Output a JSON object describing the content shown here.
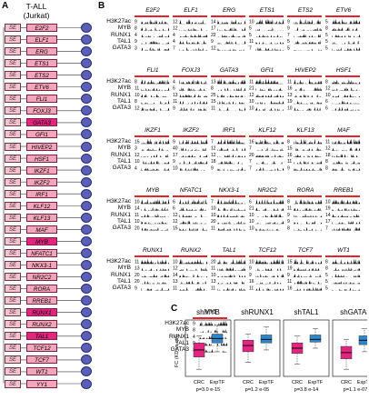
{
  "panel_a": {
    "letter": "A",
    "title_line1": "T-ALL",
    "title_line2": "(Jurkat)",
    "se_label": "SE",
    "genes": [
      "E2F2",
      "ELF1",
      "ERG",
      "ETS1",
      "ETS2",
      "ETV6",
      "FLI1",
      "FOXJ3",
      "GATA3",
      "GFI1",
      "HIVEP2",
      "HSF1",
      "IKZF1",
      "IKZF2",
      "IRF1",
      "KLF12",
      "KLF13",
      "MAF",
      "MYB",
      "NFATC1",
      "NKX3-1",
      "NR2C2",
      "RORA",
      "RREB1",
      "RUNX1",
      "RUNX2",
      "TAL1",
      "TCF12",
      "TCF7",
      "WT1",
      "YY1"
    ],
    "highlighted": [
      "GATA3",
      "MYB",
      "RUNX1",
      "TAL1"
    ]
  },
  "panel_b": {
    "letter": "B",
    "track_labels": [
      "H3K27ac",
      "MYB",
      "RUNX1",
      "TAL1",
      "GATA3"
    ],
    "blocks": [
      {
        "genes": [
          "E2F2",
          "ELF1",
          "ERG",
          "ETS1",
          "ETS2",
          "ETV6"
        ],
        "scales": [
          [
            "9",
            "8",
            "4",
            "9",
            "3"
          ],
          [
            "12",
            "12",
            "4",
            "4",
            "7"
          ],
          [
            "14",
            "17",
            "22",
            "9",
            "12"
          ],
          [
            "10",
            "5",
            "5",
            "11",
            "7"
          ],
          [
            "9",
            "9",
            "7",
            "5",
            "5"
          ],
          [
            "5",
            "8",
            "5",
            "5",
            "5"
          ]
        ]
      },
      {
        "genes": [
          "FLI1",
          "FOXJ3",
          "GATA3",
          "GFI1",
          "HIVEP2",
          "HSF1"
        ],
        "scales": [
          [
            "8",
            "11",
            "10",
            "8",
            "12"
          ],
          [
            "4",
            "6",
            "13",
            "11",
            "9"
          ],
          [
            "13",
            "8",
            "25",
            "15",
            "11"
          ],
          [
            "11",
            "21",
            "12",
            "10",
            "10"
          ],
          [
            "11",
            "16",
            "13",
            "19",
            "10"
          ],
          [
            "8",
            "12",
            "10",
            "6",
            "6"
          ]
        ]
      },
      {
        "genes": [
          "IKZF1",
          "IKZF2",
          "IRF1",
          "KLF12",
          "KLF13",
          "MAF"
        ],
        "scales": [
          [
            "15",
            "3",
            "12",
            "10",
            "4"
          ],
          [
            "9",
            "40",
            "17",
            "9",
            "10"
          ],
          [
            "7",
            "12",
            "12",
            "18",
            "9"
          ],
          [
            "16",
            "7",
            "20",
            "7",
            "7"
          ],
          [
            "8",
            "15",
            "16",
            "11",
            "9"
          ],
          [
            "11",
            "12",
            "18",
            "8",
            "8"
          ]
        ]
      },
      {
        "genes": [
          "MYB",
          "NFATC1",
          "NKX3-1",
          "NR2C2",
          "RORA",
          "RREB1"
        ],
        "scales": [
          [
            "10",
            "14",
            "11",
            "10",
            "20"
          ],
          [
            "6",
            "6",
            "12",
            "12",
            "15"
          ],
          [
            "7",
            "10",
            "10",
            "20",
            "11"
          ],
          [
            "6",
            "21",
            "10",
            "10",
            "10"
          ],
          [
            "8",
            "11",
            "9",
            "9",
            "8"
          ],
          [
            "10",
            "19",
            "14",
            "17",
            "7"
          ]
        ]
      },
      {
        "genes": [
          "RUNX1",
          "RUNX2",
          "TAL1",
          "TCF12",
          "TCF7",
          "WT1"
        ],
        "scales": [
          [
            "11",
            "13",
            "20",
            "20",
            "9"
          ],
          [
            "10",
            "12",
            "14",
            "13",
            "11"
          ],
          [
            "20",
            "11",
            "10",
            "13",
            "11"
          ],
          [
            "10",
            "9",
            "9",
            "16",
            "11"
          ],
          [
            "15",
            "19",
            "9",
            "11",
            "16"
          ],
          [
            "8",
            "8",
            "5",
            "5",
            "5"
          ]
        ]
      },
      {
        "genes": [
          "YY1"
        ],
        "scales": [
          [
            "9",
            "8",
            "4",
            "9",
            "3"
          ]
        ]
      }
    ]
  },
  "panel_c": {
    "letter": "C",
    "ylabel": "FC (KD vs ctrl)",
    "chart_data": [
      {
        "type": "box",
        "title": "shMYB",
        "categories": [
          "CRC",
          "ExpTF"
        ],
        "pvalue": "p=3.0 e-15",
        "boxes": [
          {
            "name": "CRC",
            "q1": -0.9,
            "median": -0.5,
            "q3": -0.1,
            "whisker_low": -1.6,
            "whisker_high": 0.3
          },
          {
            "name": "ExpTF",
            "q1": -0.1,
            "median": 0.15,
            "q3": 0.4,
            "whisker_low": -0.6,
            "whisker_high": 0.9
          }
        ]
      },
      {
        "type": "box",
        "title": "shRUNX1",
        "categories": [
          "CRC",
          "ExpTF"
        ],
        "pvalue": "p=1.2 e-05",
        "boxes": [
          {
            "name": "CRC",
            "q1": -0.6,
            "median": -0.25,
            "q3": 0.05,
            "whisker_low": -1.2,
            "whisker_high": 0.4
          },
          {
            "name": "ExpTF",
            "q1": -0.1,
            "median": 0.1,
            "q3": 0.35,
            "whisker_low": -0.5,
            "whisker_high": 0.8
          }
        ]
      },
      {
        "type": "box",
        "title": "shTAL1",
        "categories": [
          "CRC",
          "ExpTF"
        ],
        "pvalue": "p=3.8 e-14",
        "boxes": [
          {
            "name": "CRC",
            "q1": -0.7,
            "median": -0.4,
            "q3": -0.1,
            "whisker_low": -1.3,
            "whisker_high": 0.3
          },
          {
            "name": "ExpTF",
            "q1": -0.05,
            "median": 0.1,
            "q3": 0.35,
            "whisker_low": -0.4,
            "whisker_high": 0.7
          }
        ]
      },
      {
        "type": "box",
        "title": "shGATA3",
        "categories": [
          "CRC",
          "ExpTF"
        ],
        "pvalue": "p=1.1 e-07",
        "boxes": [
          {
            "name": "CRC",
            "q1": -1.0,
            "median": -0.65,
            "q3": -0.3,
            "whisker_low": -1.6,
            "whisker_high": 0.1
          },
          {
            "name": "ExpTF",
            "q1": -0.2,
            "median": 0.05,
            "q3": 0.3,
            "whisker_low": -0.6,
            "whisker_high": 0.7
          }
        ]
      }
    ],
    "colors": {
      "crc": "#e3257f",
      "exptf": "#2f86c8"
    }
  },
  "colors": {
    "se_fill": "#f2c4cf",
    "gene_fill": "#f3a6bb",
    "gene_highlight": "#e3257f",
    "tf_node": "#5a5fb8",
    "redbar": "#e2242c"
  }
}
